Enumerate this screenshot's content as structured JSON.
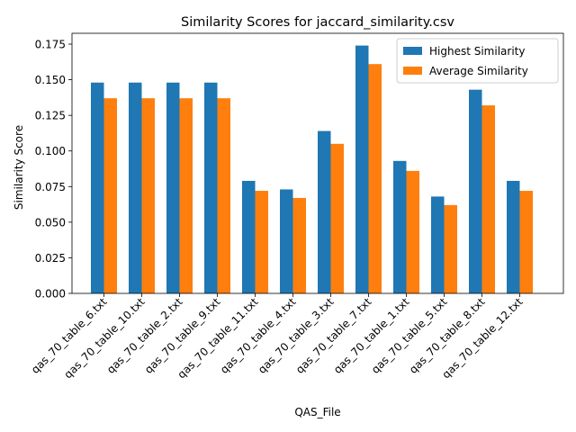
{
  "chart_data": {
    "type": "bar",
    "title": "Similarity Scores for jaccard_similarity.csv",
    "xlabel": "QAS_File",
    "ylabel": "Similarity Score",
    "categories": [
      "qas_70_table_6.txt",
      "qas_70_table_10.txt",
      "qas_70_table_2.txt",
      "qas_70_table_9.txt",
      "qas_70_table_11.txt",
      "qas_70_table_4.txt",
      "qas_70_table_3.txt",
      "qas_70_table_7.txt",
      "qas_70_table_1.txt",
      "qas_70_table_5.txt",
      "qas_70_table_8.txt",
      "qas_70_table_12.txt"
    ],
    "series": [
      {
        "name": "Highest Similarity",
        "color": "#1f77b4",
        "values": [
          0.148,
          0.148,
          0.148,
          0.148,
          0.079,
          0.073,
          0.114,
          0.174,
          0.093,
          0.068,
          0.143,
          0.079
        ]
      },
      {
        "name": "Average Similarity",
        "color": "#ff7f0e",
        "values": [
          0.137,
          0.137,
          0.137,
          0.137,
          0.072,
          0.067,
          0.105,
          0.161,
          0.086,
          0.062,
          0.132,
          0.072
        ]
      }
    ],
    "ylim": [
      0,
      0.1826
    ],
    "yticks": [
      "0.000",
      "0.025",
      "0.050",
      "0.075",
      "0.100",
      "0.125",
      "0.150",
      "0.175"
    ],
    "grid": false,
    "legend_position": "top-right"
  }
}
